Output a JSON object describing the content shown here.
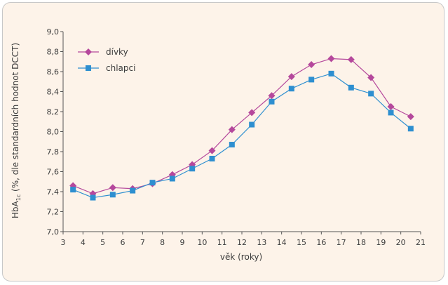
{
  "chart_data": {
    "type": "line",
    "title": "",
    "xlabel": "věk (roky)",
    "ylabel_main": "HbA",
    "ylabel_sub": "1c",
    "ylabel_rest": " (%, dle standardních hodnot DCCT)",
    "xlim": [
      3,
      21
    ],
    "ylim": [
      7.0,
      9.0
    ],
    "x_ticks": [
      3,
      4,
      5,
      6,
      7,
      8,
      9,
      10,
      11,
      12,
      13,
      14,
      15,
      16,
      17,
      18,
      19,
      20,
      21
    ],
    "y_ticks": [
      "7,0",
      "7,2",
      "7,4",
      "7,6",
      "7,8",
      "8,0",
      "8,2",
      "8,4",
      "8,6",
      "8,8",
      "9,0"
    ],
    "legend_position": "top-left",
    "grid": false,
    "x": [
      3.5,
      4.5,
      5.5,
      6.5,
      7.5,
      8.5,
      9.5,
      10.5,
      11.5,
      12.5,
      13.5,
      14.5,
      15.5,
      16.5,
      17.5,
      18.5,
      19.5,
      20.5
    ],
    "series": [
      {
        "name": "dívky",
        "color": "#b5489c",
        "marker": "diamond",
        "values": [
          7.46,
          7.38,
          7.44,
          7.43,
          7.48,
          7.57,
          7.67,
          7.81,
          8.02,
          8.19,
          8.36,
          8.55,
          8.67,
          8.73,
          8.72,
          8.54,
          8.25,
          8.15
        ]
      },
      {
        "name": "chlapci",
        "color": "#2e8fd0",
        "marker": "square",
        "values": [
          7.42,
          7.34,
          7.37,
          7.41,
          7.49,
          7.53,
          7.63,
          7.73,
          7.87,
          8.07,
          8.3,
          8.43,
          8.52,
          8.58,
          8.44,
          8.38,
          8.19,
          8.03
        ]
      }
    ]
  }
}
